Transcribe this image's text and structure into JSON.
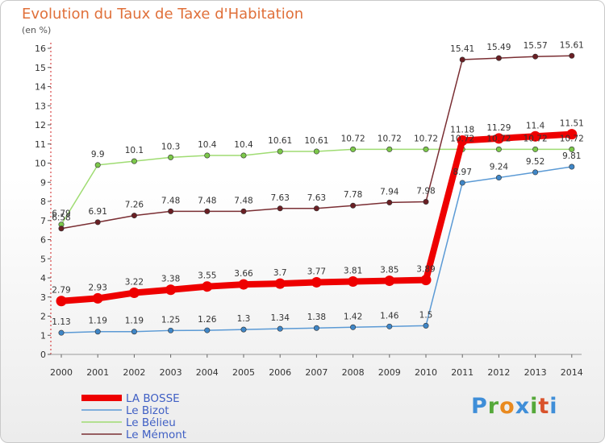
{
  "header": {
    "title": "Evolution du Taux de Taxe d'Habitation",
    "unit": "(en %)"
  },
  "logo": {
    "letters": [
      "P",
      "r",
      "o",
      "x",
      "i",
      "t",
      "i"
    ],
    "colors": [
      "#3f8ed8",
      "#55a83a",
      "#e98a1f",
      "#3f8ed8",
      "#55a83a",
      "#d9532c",
      "#3f8ed8"
    ]
  },
  "chart_data": {
    "type": "line",
    "x": [
      2000,
      2001,
      2002,
      2003,
      2004,
      2005,
      2006,
      2007,
      2008,
      2009,
      2010,
      2011,
      2012,
      2013,
      2014
    ],
    "ylim": [
      0,
      16
    ],
    "yticks": [
      0,
      1,
      2,
      3,
      4,
      5,
      6,
      7,
      8,
      9,
      10,
      11,
      12,
      13,
      14,
      15,
      16
    ],
    "grid": false,
    "legend_position": "bottom-left",
    "series": [
      {
        "name": "Le Bizot",
        "color": "#5b9ad5",
        "marker": "#3f86c7",
        "values": [
          1.13,
          1.19,
          1.19,
          1.25,
          1.26,
          1.3,
          1.34,
          1.38,
          1.42,
          1.46,
          1.5,
          8.97,
          9.24,
          9.52,
          9.81
        ],
        "labels": [
          "1.13",
          "1.19",
          "1.19",
          "1.25",
          "1.26",
          "1.3",
          "1.34",
          "1.38",
          "1.42",
          "1.46",
          "1.5",
          "8.97",
          "9.24",
          "9.52",
          "9.81"
        ]
      },
      {
        "name": "Le Bélieu",
        "color": "#9fdc72",
        "marker": "#7cc84a",
        "values": [
          6.79,
          9.9,
          10.1,
          10.3,
          10.4,
          10.4,
          10.61,
          10.61,
          10.72,
          10.72,
          10.72,
          10.72,
          10.72,
          10.72,
          10.72
        ],
        "labels": [
          "6.79",
          "9.9",
          "10.1",
          "10.3",
          "10.4",
          "10.4",
          "10.61",
          "10.61",
          "10.72",
          "10.72",
          "10.72",
          "10.72",
          "10.72",
          "10.72",
          "10.72"
        ]
      },
      {
        "name": "Le Mémont",
        "color": "#7a2e33",
        "marker": "#6a1f24",
        "values": [
          6.58,
          6.91,
          7.26,
          7.48,
          7.48,
          7.48,
          7.63,
          7.63,
          7.78,
          7.94,
          7.98,
          15.41,
          15.49,
          15.57,
          15.61
        ],
        "labels": [
          "6.58",
          "6.91",
          "7.26",
          "7.48",
          "7.48",
          "7.48",
          "7.63",
          "7.63",
          "7.78",
          "7.94",
          "7.98",
          "15.41",
          "15.49",
          "15.57",
          "15.61"
        ]
      },
      {
        "name": "LA BOSSE",
        "color": "#ee0000",
        "marker": "#ee0000",
        "emphasis": true,
        "values": [
          2.79,
          2.93,
          3.22,
          3.38,
          3.55,
          3.66,
          3.7,
          3.77,
          3.81,
          3.85,
          3.89,
          11.18,
          11.29,
          11.4,
          11.51
        ],
        "labels": [
          "2.79",
          "2.93",
          "3.22",
          "3.38",
          "3.55",
          "3.66",
          "3.7",
          "3.77",
          "3.81",
          "3.85",
          "3.89",
          "11.18",
          "11.29",
          "11.4",
          "11.51"
        ]
      }
    ],
    "legend": [
      "LA BOSSE",
      "Le Bizot",
      "Le Bélieu",
      "Le Mémont"
    ]
  }
}
